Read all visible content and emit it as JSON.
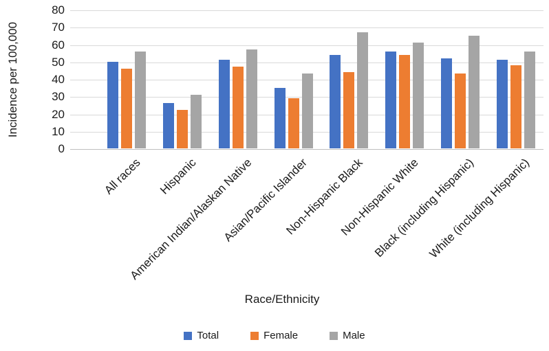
{
  "chart_data": {
    "type": "bar",
    "title": "",
    "xlabel": "Race/Ethnicity",
    "ylabel": "Incidence per 100,000",
    "ylim": [
      0,
      80
    ],
    "yticks": [
      80,
      70,
      60,
      50,
      40,
      30,
      20,
      10,
      0
    ],
    "grid": true,
    "legend_position": "bottom",
    "categories": [
      "All races",
      "Hispanic",
      "American Indian/Alaskan Native",
      "Asian/Pacific Islander",
      "Non-Hispanic Black",
      "Non-Hispanic White",
      "Black (including Hispanic)",
      "White (including Hispanic)"
    ],
    "series": [
      {
        "name": "Total",
        "color": "#4472C4",
        "values": [
          50,
          26,
          51,
          35,
          54,
          56,
          52,
          51
        ]
      },
      {
        "name": "Female",
        "color": "#ED7D31",
        "values": [
          46,
          22,
          47,
          29,
          44,
          54,
          43,
          48
        ]
      },
      {
        "name": "Male",
        "color": "#A5A5A5",
        "values": [
          56,
          31,
          57,
          43,
          67,
          61,
          65,
          56
        ]
      }
    ]
  },
  "colors": {
    "background": "#FFFFFF",
    "gridline": "#D9D9D9",
    "axis_line": "#BFBFBF",
    "text": "#1A1A1A"
  }
}
